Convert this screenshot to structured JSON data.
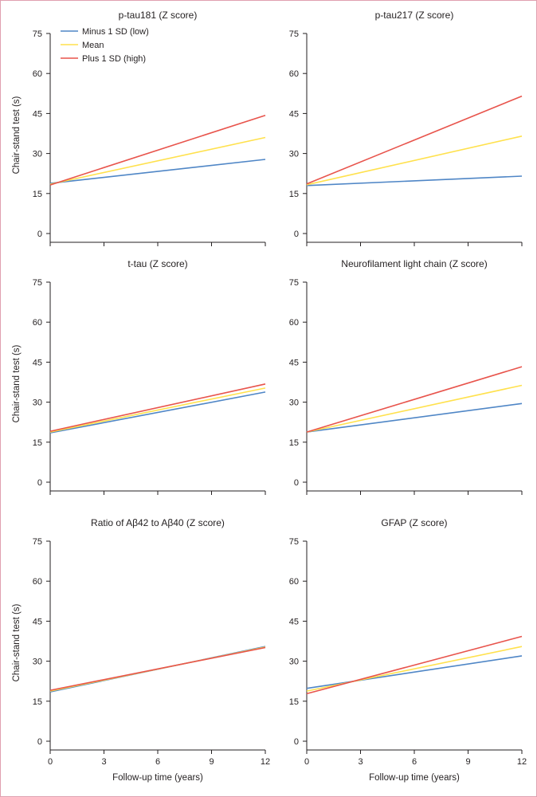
{
  "colors": {
    "low": "#4f86c6",
    "mean": "#ffe14d",
    "high": "#e8544c",
    "axis": "#231f20"
  },
  "legend": [
    {
      "key": "low",
      "label": "Minus 1 SD (low)"
    },
    {
      "key": "mean",
      "label": "Mean"
    },
    {
      "key": "high",
      "label": "Plus 1 SD (high)"
    }
  ],
  "chart_data": [
    {
      "type": "line",
      "title": "p-tau181 (Z score)",
      "ylabel": "Chair-stand test (s)",
      "xlabel": "",
      "xlim": [
        0,
        12
      ],
      "ylim": [
        0,
        75
      ],
      "xticks": [
        "0",
        "3",
        "6",
        "9",
        "12"
      ],
      "yticks": [
        "0",
        "15",
        "30",
        "45",
        "60",
        "75"
      ],
      "series": [
        {
          "name": "Minus 1 SD (low)",
          "key": "low",
          "x": [
            0,
            12
          ],
          "y": [
            18.8,
            27.8
          ]
        },
        {
          "name": "Mean",
          "key": "mean",
          "x": [
            0,
            12
          ],
          "y": [
            18.5,
            36.0
          ]
        },
        {
          "name": "Plus 1 SD (high)",
          "key": "high",
          "x": [
            0,
            12
          ],
          "y": [
            18.2,
            44.3
          ]
        }
      ]
    },
    {
      "type": "line",
      "title": "p-tau217 (Z score)",
      "ylabel": "",
      "xlabel": "",
      "xlim": [
        0,
        12
      ],
      "ylim": [
        0,
        75
      ],
      "xticks": [
        "0",
        "3",
        "6",
        "9",
        "12"
      ],
      "yticks": [
        "0",
        "15",
        "30",
        "45",
        "60",
        "75"
      ],
      "series": [
        {
          "name": "Minus 1 SD (low)",
          "key": "low",
          "x": [
            0,
            12
          ],
          "y": [
            18.0,
            21.5
          ]
        },
        {
          "name": "Mean",
          "key": "mean",
          "x": [
            0,
            12
          ],
          "y": [
            18.3,
            36.5
          ]
        },
        {
          "name": "Plus 1 SD (high)",
          "key": "high",
          "x": [
            0,
            12
          ],
          "y": [
            18.6,
            51.5
          ]
        }
      ]
    },
    {
      "type": "line",
      "title": "t-tau (Z score)",
      "ylabel": "Chair-stand test (s)",
      "xlabel": "",
      "xlim": [
        0,
        12
      ],
      "ylim": [
        0,
        75
      ],
      "xticks": [
        "0",
        "3",
        "6",
        "9",
        "12"
      ],
      "yticks": [
        "0",
        "15",
        "30",
        "45",
        "60",
        "75"
      ],
      "series": [
        {
          "name": "Minus 1 SD (low)",
          "key": "low",
          "x": [
            0,
            12
          ],
          "y": [
            18.5,
            33.8
          ]
        },
        {
          "name": "Mean",
          "key": "mean",
          "x": [
            0,
            12
          ],
          "y": [
            18.8,
            35.3
          ]
        },
        {
          "name": "Plus 1 SD (high)",
          "key": "high",
          "x": [
            0,
            12
          ],
          "y": [
            19.1,
            36.8
          ]
        }
      ]
    },
    {
      "type": "line",
      "title": "Neurofilament light chain (Z score)",
      "ylabel": "",
      "xlabel": "",
      "xlim": [
        0,
        12
      ],
      "ylim": [
        0,
        75
      ],
      "xticks": [
        "0",
        "3",
        "6",
        "9",
        "12"
      ],
      "yticks": [
        "0",
        "15",
        "30",
        "45",
        "60",
        "75"
      ],
      "series": [
        {
          "name": "Minus 1 SD (low)",
          "key": "low",
          "x": [
            0,
            12
          ],
          "y": [
            18.8,
            29.5
          ]
        },
        {
          "name": "Mean",
          "key": "mean",
          "x": [
            0,
            12
          ],
          "y": [
            18.8,
            36.3
          ]
        },
        {
          "name": "Plus 1 SD (high)",
          "key": "high",
          "x": [
            0,
            12
          ],
          "y": [
            18.8,
            43.3
          ]
        }
      ]
    },
    {
      "type": "line",
      "title": "Ratio of Aβ42 to Aβ40 (Z score)",
      "ylabel": "Chair-stand test (s)",
      "xlabel": "Follow-up time (years)",
      "xlim": [
        0,
        12
      ],
      "ylim": [
        0,
        75
      ],
      "xticks": [
        "0",
        "3",
        "6",
        "9",
        "12"
      ],
      "yticks": [
        "0",
        "15",
        "30",
        "45",
        "60",
        "75"
      ],
      "series": [
        {
          "name": "Minus 1 SD (low)",
          "key": "low",
          "x": [
            0,
            12
          ],
          "y": [
            18.5,
            35.5
          ]
        },
        {
          "name": "Mean",
          "key": "mean",
          "x": [
            0,
            12
          ],
          "y": [
            18.8,
            35.3
          ]
        },
        {
          "name": "Plus 1 SD (high)",
          "key": "high",
          "x": [
            0,
            12
          ],
          "y": [
            19.1,
            35.1
          ]
        }
      ]
    },
    {
      "type": "line",
      "title": "GFAP (Z score)",
      "ylabel": "",
      "xlabel": "Follow-up time (years)",
      "xlim": [
        0,
        12
      ],
      "ylim": [
        0,
        75
      ],
      "xticks": [
        "0",
        "3",
        "6",
        "9",
        "12"
      ],
      "yticks": [
        "0",
        "15",
        "30",
        "45",
        "60",
        "75"
      ],
      "series": [
        {
          "name": "Minus 1 SD (low)",
          "key": "low",
          "x": [
            0,
            12
          ],
          "y": [
            19.8,
            32.0
          ]
        },
        {
          "name": "Mean",
          "key": "mean",
          "x": [
            0,
            12
          ],
          "y": [
            18.8,
            35.5
          ]
        },
        {
          "name": "Plus 1 SD (high)",
          "key": "high",
          "x": [
            0,
            12
          ],
          "y": [
            17.8,
            39.3
          ]
        }
      ]
    }
  ]
}
